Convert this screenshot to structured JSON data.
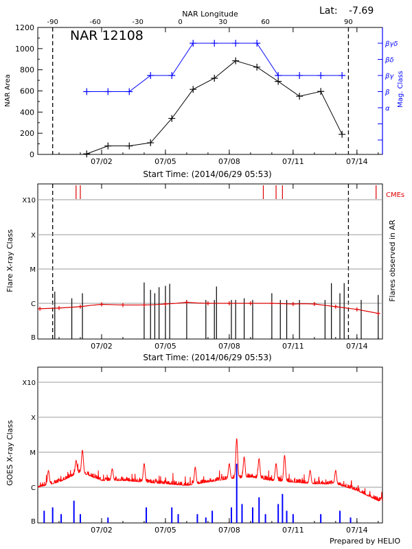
{
  "header": {
    "lat_label": "Lat:",
    "lat_value": "-7.69",
    "region": "NAR 12108",
    "footer": "Prepared by HELIO",
    "start_time_1": "Start Time: (2014/06/29 05:53)",
    "start_time_2": "Start Time: (2014/06/29 05:53)"
  },
  "colors": {
    "area": "#000000",
    "magclass": "#0000ff",
    "flare_trend": "#dd0000",
    "cme": "#dd0000",
    "goes_long": "#ff0000",
    "goes_short": "#0000ff",
    "grid": "#999999"
  },
  "chart_data": [
    {
      "id": "panel1",
      "type": "line",
      "xlabel_top": "NAR Longitude",
      "ylabel": "NAR Area",
      "ylabel_right": "Mag. Class",
      "x_range_days": [
        0,
        16.2
      ],
      "ylim": [
        0,
        1200
      ],
      "date_ticks": [
        {
          "label": "07/02",
          "day": 3.0
        },
        {
          "label": "07/05",
          "day": 6.0
        },
        {
          "label": "07/08",
          "day": 9.0
        },
        {
          "label": "07/11",
          "day": 12.0
        },
        {
          "label": "07/14",
          "day": 15.0
        }
      ],
      "y_ticks": [
        0,
        200,
        400,
        600,
        800,
        1000,
        1200
      ],
      "longitude_ticks": [
        {
          "label": "-90",
          "day": 0.7
        },
        {
          "label": "-60",
          "day": 2.7
        },
        {
          "label": "-30",
          "day": 4.7
        },
        {
          "label": "0",
          "day": 6.7
        },
        {
          "label": "30",
          "day": 8.7
        },
        {
          "label": "60",
          "day": 10.7
        },
        {
          "label": "90",
          "day": 14.6
        }
      ],
      "limb_lines_day": [
        0.7,
        14.6
      ],
      "area_series": {
        "name": "NAR Area",
        "days": [
          2.3,
          3.3,
          4.3,
          5.3,
          6.3,
          7.3,
          8.3,
          9.3,
          10.3,
          11.3,
          12.3,
          13.3,
          14.3
        ],
        "values": [
          5,
          80,
          80,
          110,
          340,
          615,
          720,
          885,
          825,
          690,
          550,
          595,
          190
        ]
      },
      "magclass_levels": [
        "α",
        "β",
        "βγ",
        "βδ",
        "βγδ"
      ],
      "magclass_series": {
        "name": "Mag. Class",
        "days": [
          2.3,
          3.3,
          4.3,
          5.3,
          6.3,
          7.3,
          8.3,
          9.3,
          10.3,
          11.3,
          12.3,
          13.3,
          14.3
        ],
        "values": [
          "β",
          "β",
          "β",
          "βγ",
          "βγ",
          "βγδ",
          "βγδ",
          "βγδ",
          "βγδ",
          "βγ",
          "βγ",
          "βγ",
          "βγ"
        ]
      }
    },
    {
      "id": "panel2",
      "type": "scatter",
      "ylabel": "Flare X-ray Class",
      "ylabel_right": "Flares observed in AR",
      "cme_label": "CMEs",
      "x_range_days": [
        0,
        16.2
      ],
      "class_levels": [
        "B",
        "C",
        "M",
        "X",
        "X10"
      ],
      "date_ticks": [
        {
          "label": "07/02",
          "day": 3.0
        },
        {
          "label": "07/05",
          "day": 6.0
        },
        {
          "label": "07/08",
          "day": 9.0
        },
        {
          "label": "07/11",
          "day": 12.0
        },
        {
          "label": "07/14",
          "day": 15.0
        }
      ],
      "limb_lines_day": [
        0.7,
        14.6
      ],
      "cme_days": [
        1.8,
        2.0,
        10.6,
        11.2,
        11.5,
        15.9
      ],
      "flares": {
        "days": [
          0.8,
          1.6,
          2.1,
          5.0,
          5.3,
          5.5,
          5.7,
          6.0,
          6.2,
          7.0,
          7.9,
          8.3,
          8.4,
          9.1,
          9.3,
          9.7,
          10.1,
          11.0,
          11.4,
          11.7,
          12.3,
          13.5,
          13.8,
          14.2,
          14.4,
          15.2,
          16.0
        ],
        "log_class": [
          -5.65,
          -5.85,
          -5.7,
          -5.38,
          -5.6,
          -5.7,
          -5.52,
          -5.48,
          -5.42,
          -5.9,
          -5.9,
          -5.9,
          -5.5,
          -5.9,
          -5.9,
          -5.85,
          -5.9,
          -5.7,
          -5.9,
          -5.9,
          -5.9,
          -5.9,
          -5.4,
          -5.7,
          -5.4,
          -5.9,
          -5.75
        ]
      },
      "trend": {
        "days": [
          0.1,
          0.5,
          1.0,
          1.5,
          2.0,
          2.5,
          3.0,
          3.5,
          4.0,
          4.5,
          5.0,
          5.5,
          6.0,
          6.5,
          7.0,
          7.5,
          8.0,
          8.5,
          9.0,
          9.5,
          10.0,
          10.5,
          11.0,
          11.5,
          12.0,
          12.5,
          13.0,
          13.5,
          14.0,
          14.5,
          15.0,
          15.5,
          16.0
        ],
        "log_class": [
          -6.16,
          -6.15,
          -6.14,
          -6.12,
          -6.1,
          -6.06,
          -6.03,
          -6.04,
          -6.05,
          -6.05,
          -6.05,
          -6.04,
          -6.02,
          -6.0,
          -5.97,
          -5.99,
          -6.0,
          -6.0,
          -6.0,
          -6.0,
          -6.0,
          -6.0,
          -6.0,
          -6.01,
          -6.02,
          -6.01,
          -6.02,
          -6.06,
          -6.1,
          -6.14,
          -6.18,
          -6.24,
          -6.3
        ]
      }
    },
    {
      "id": "panel3",
      "type": "line",
      "ylabel": "GOES X-ray Class",
      "x_range_days": [
        0,
        16.2
      ],
      "class_levels": [
        "B",
        "C",
        "M",
        "X",
        "X10"
      ],
      "date_ticks": [
        {
          "label": "07/02",
          "day": 3.0
        },
        {
          "label": "07/05",
          "day": 6.0
        },
        {
          "label": "07/08",
          "day": 9.0
        },
        {
          "label": "07/11",
          "day": 12.0
        },
        {
          "label": "07/14",
          "day": 15.0
        }
      ],
      "long_channel_baseline": {
        "days": [
          0,
          1,
          2,
          3,
          4,
          5,
          6,
          7,
          8,
          9,
          10,
          11,
          12,
          13,
          14,
          15,
          16
        ],
        "log_class": [
          -6.0,
          -5.85,
          -5.55,
          -5.8,
          -5.8,
          -5.85,
          -5.9,
          -5.95,
          -5.85,
          -5.75,
          -5.7,
          -5.8,
          -5.85,
          -5.9,
          -5.9,
          -6.1,
          -6.4
        ]
      },
      "long_channel_peaks": {
        "days": [
          0.5,
          1.8,
          2.1,
          3.5,
          5.0,
          7.4,
          9.0,
          9.35,
          9.7,
          10.4,
          11.2,
          11.6,
          12.8,
          14.0
        ],
        "log_class": [
          -5.5,
          -5.2,
          -4.9,
          -5.45,
          -5.3,
          -5.4,
          -5.3,
          -4.55,
          -5.1,
          -5.15,
          -5.3,
          -5.05,
          -5.5,
          -5.5
        ]
      },
      "short_channel_spikes": {
        "days": [
          0.3,
          0.7,
          1.1,
          1.7,
          2.0,
          3.3,
          5.1,
          6.3,
          6.6,
          7.5,
          7.9,
          8.2,
          9.1,
          9.35,
          9.6,
          10.1,
          10.4,
          10.7,
          11.3,
          11.5,
          11.7,
          12.0,
          13.3,
          14.2,
          14.7
        ],
        "log_class": [
          -6.7,
          -6.6,
          -6.8,
          -6.4,
          -6.8,
          -6.9,
          -6.6,
          -6.6,
          -6.8,
          -6.8,
          -6.9,
          -6.7,
          -6.6,
          -5.3,
          -6.5,
          -6.6,
          -6.3,
          -6.8,
          -6.5,
          -6.2,
          -6.7,
          -6.8,
          -6.8,
          -6.7,
          -6.9
        ]
      }
    }
  ]
}
